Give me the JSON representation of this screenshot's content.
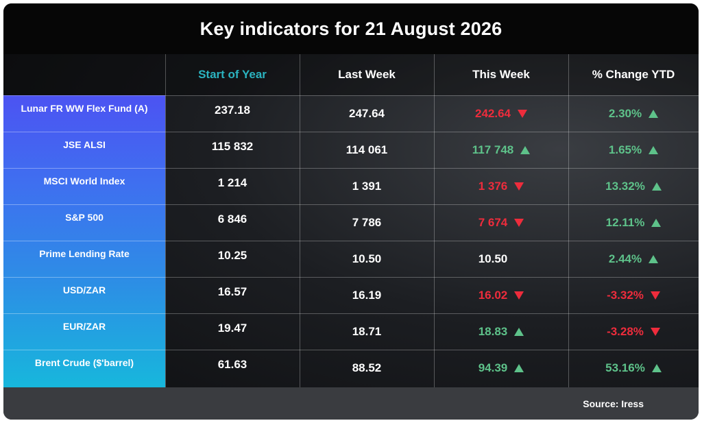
{
  "title": "Key indicators for 21 August 2026",
  "headers": [
    "Start of Year",
    "Last Week",
    "This Week",
    "% Change YTD"
  ],
  "colors": {
    "accent": "#2bb3c0",
    "up": "#5ec28a",
    "down": "#ee2c3c"
  },
  "rows": [
    {
      "label": "Lunar FR WW Flex Fund (A)",
      "start": "237.18",
      "last": "247.64",
      "this": "242.64",
      "this_dir": "down",
      "ytd": "2.30%",
      "ytd_dir": "up"
    },
    {
      "label": "JSE ALSI",
      "start": "115 832",
      "last": "114 061",
      "this": "117 748",
      "this_dir": "up",
      "ytd": "1.65%",
      "ytd_dir": "up"
    },
    {
      "label": "MSCI World Index",
      "start": "1 214",
      "last": "1 391",
      "this": "1 376",
      "this_dir": "down",
      "ytd": "13.32%",
      "ytd_dir": "up"
    },
    {
      "label": "S&P 500",
      "start": "6 846",
      "last": "7 786",
      "this": "7 674",
      "this_dir": "down",
      "ytd": "12.11%",
      "ytd_dir": "up"
    },
    {
      "label": "Prime Lending Rate",
      "start": "10.25",
      "last": "10.50",
      "this": "10.50",
      "this_dir": "none",
      "ytd": "2.44%",
      "ytd_dir": "up"
    },
    {
      "label": "USD/ZAR",
      "start": "16.57",
      "last": "16.19",
      "this": "16.02",
      "this_dir": "down",
      "ytd": "-3.32%",
      "ytd_dir": "down"
    },
    {
      "label": "EUR/ZAR",
      "start": "19.47",
      "last": "18.71",
      "this": "18.83",
      "this_dir": "up",
      "ytd": "-3.28%",
      "ytd_dir": "down"
    },
    {
      "label": "Brent Crude ($'barrel)",
      "start": "61.63",
      "last": "88.52",
      "this": "94.39",
      "this_dir": "up",
      "ytd": "53.16%",
      "ytd_dir": "up"
    }
  ],
  "source": "Source: Iress"
}
